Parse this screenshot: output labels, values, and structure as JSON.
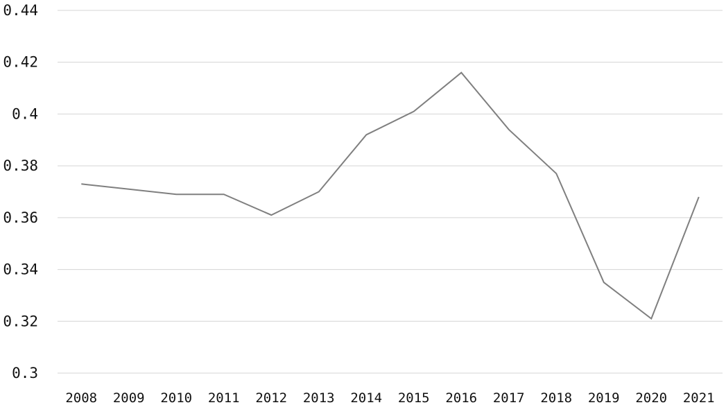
{
  "chart_data": {
    "type": "line",
    "title": "",
    "xlabel": "",
    "ylabel": "",
    "x": [
      "2008",
      "2009",
      "2010",
      "2011",
      "2012",
      "2013",
      "2014",
      "2015",
      "2016",
      "2017",
      "2018",
      "2019",
      "2020",
      "2021"
    ],
    "series": [
      {
        "values": [
          0.373,
          0.371,
          0.369,
          0.369,
          0.361,
          0.37,
          0.392,
          0.401,
          0.416,
          0.394,
          0.377,
          0.335,
          0.321,
          0.368
        ]
      }
    ],
    "ylim": [
      0.3,
      0.44
    ],
    "yticks": [
      0.44,
      0.42,
      0.4,
      0.38,
      0.36,
      0.34,
      0.32,
      0.3
    ],
    "ytick_labels": [
      "0.44",
      "0.42",
      "0.4",
      "0.38",
      "0.36",
      "0.34",
      "0.32",
      "0.3"
    ],
    "grid": true,
    "line_color": "#7f7f7f",
    "grid_color": "#d4d4d4",
    "legend": "none"
  }
}
